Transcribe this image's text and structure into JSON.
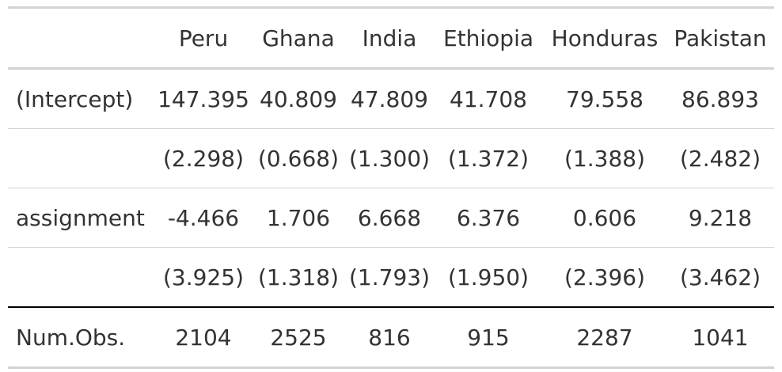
{
  "table": {
    "columns": [
      "",
      "Peru",
      "Ghana",
      "India",
      "Ethiopia",
      "Honduras",
      "Pakistan"
    ],
    "rows": [
      {
        "label": "(Intercept)",
        "cells": [
          "147.395",
          "40.809",
          "47.809",
          "41.708",
          "79.558",
          "86.893"
        ]
      },
      {
        "label": "",
        "cells": [
          "(2.298)",
          "(0.668)",
          "(1.300)",
          "(1.372)",
          "(1.388)",
          "(2.482)"
        ]
      },
      {
        "label": "assignment",
        "cells": [
          "-4.466",
          "1.706",
          "6.668",
          "6.376",
          "0.606",
          "9.218"
        ]
      },
      {
        "label": "",
        "cells": [
          "(3.925)",
          "(1.318)",
          "(1.793)",
          "(1.950)",
          "(2.396)",
          "(3.462)"
        ]
      },
      {
        "label": "Num.Obs.",
        "cells": [
          "2104",
          "2525",
          "816",
          "915",
          "2287",
          "1041"
        ]
      }
    ]
  },
  "colors": {
    "text": "#333333",
    "rule_light": "#d3d3d3",
    "rule_dark": "#000000"
  }
}
